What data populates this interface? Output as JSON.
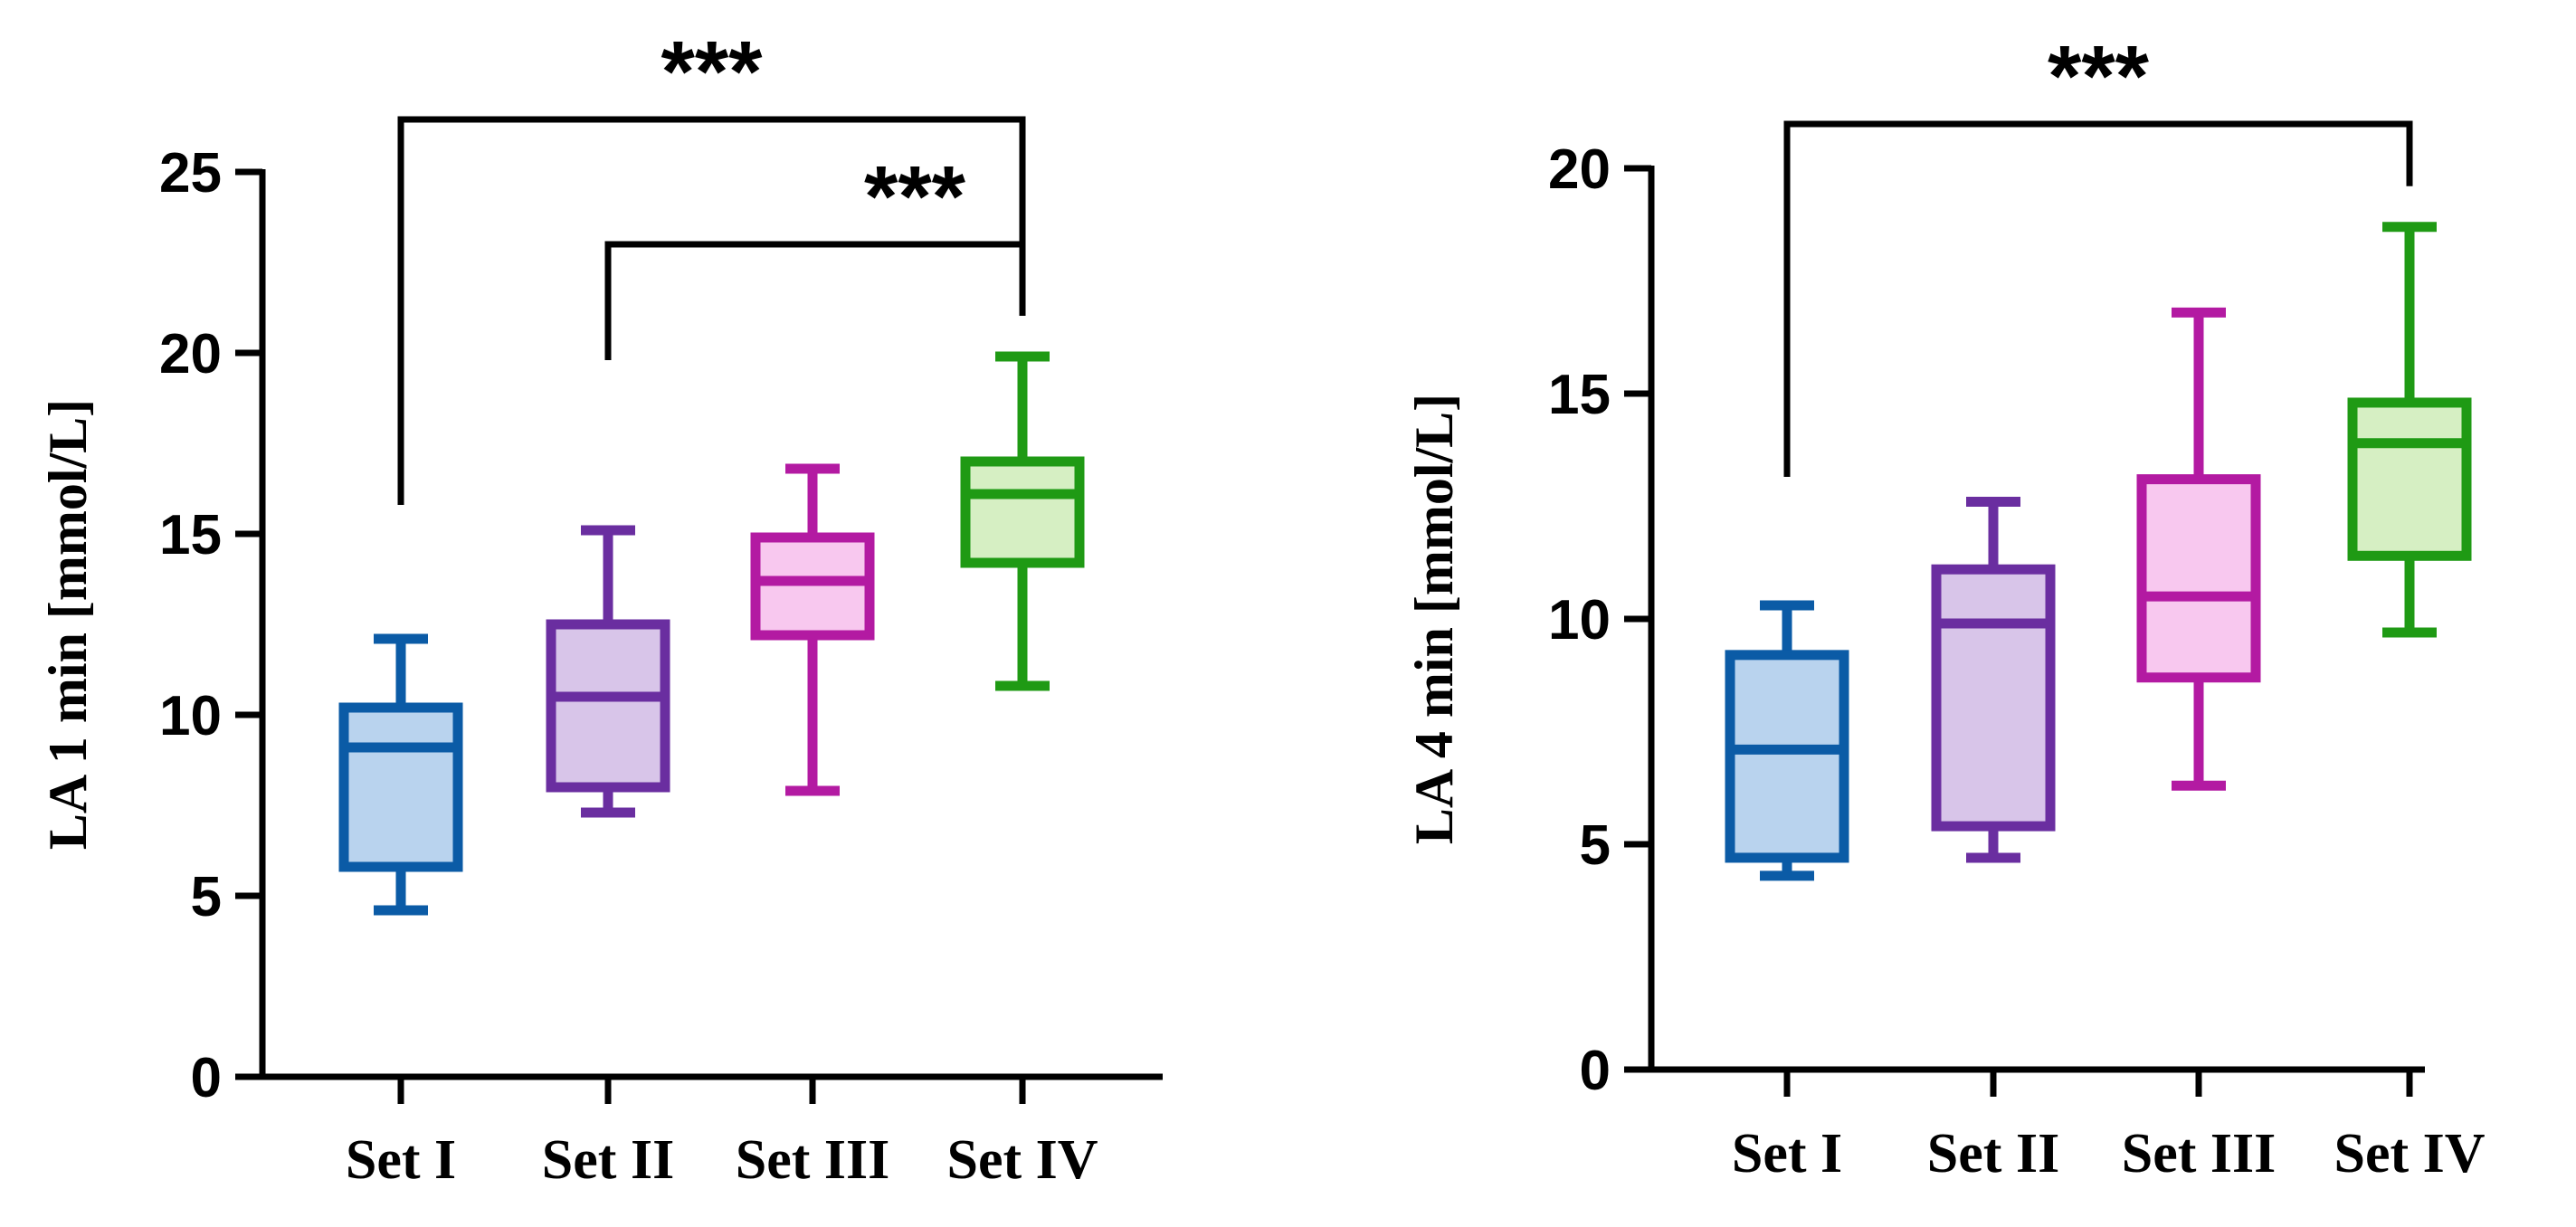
{
  "chart_data": [
    {
      "type": "box",
      "ylabel": "LA 1 min [mmol/L]",
      "xlabel": "",
      "ylim": [
        0,
        25
      ],
      "yticks": [
        "0",
        "5",
        "10",
        "15",
        "20",
        "25"
      ],
      "categories": [
        "Set I",
        "Set II",
        "Set III",
        "Set IV"
      ],
      "boxes": [
        {
          "min": 4.6,
          "q1": 5.8,
          "median": 9.1,
          "q3": 10.2,
          "max": 12.1
        },
        {
          "min": 7.3,
          "q1": 8.0,
          "median": 10.5,
          "q3": 12.5,
          "max": 15.1
        },
        {
          "min": 7.9,
          "q1": 12.2,
          "median": 13.7,
          "q3": 14.9,
          "max": 16.8
        },
        {
          "min": 10.8,
          "q1": 14.2,
          "median": 16.1,
          "q3": 17.0,
          "max": 19.9
        }
      ],
      "significance": [
        {
          "from": 0,
          "to": 3,
          "label": "***"
        },
        {
          "from": 1,
          "to": 3,
          "label": "***"
        }
      ],
      "grid": false
    },
    {
      "type": "box",
      "ylabel": "LA 4 min [mmol/L]",
      "xlabel": "",
      "ylim": [
        0,
        20
      ],
      "yticks": [
        "0",
        "5",
        "10",
        "15",
        "20"
      ],
      "categories": [
        "Set I",
        "Set II",
        "Set III",
        "Set IV"
      ],
      "boxes": [
        {
          "min": 4.3,
          "q1": 4.7,
          "median": 7.1,
          "q3": 9.2,
          "max": 10.3
        },
        {
          "min": 4.7,
          "q1": 5.4,
          "median": 9.9,
          "q3": 11.1,
          "max": 12.6
        },
        {
          "min": 6.3,
          "q1": 8.7,
          "median": 10.5,
          "q3": 13.1,
          "max": 16.8
        },
        {
          "min": 9.7,
          "q1": 11.4,
          "median": 13.9,
          "q3": 14.8,
          "max": 18.7
        }
      ],
      "significance": [
        {
          "from": 0,
          "to": 3,
          "label": "***"
        }
      ],
      "grid": false
    }
  ],
  "colors": {
    "set_i": {
      "stroke": "#0b5ba6",
      "fill": "#b9d3ee"
    },
    "set_ii": {
      "stroke": "#6a2ea0",
      "fill": "#d8c5e9"
    },
    "set_iii": {
      "stroke": "#b31aa2",
      "fill": "#f8c8ef"
    },
    "set_iv": {
      "stroke": "#1f9a14",
      "fill": "#d6efc3"
    }
  }
}
